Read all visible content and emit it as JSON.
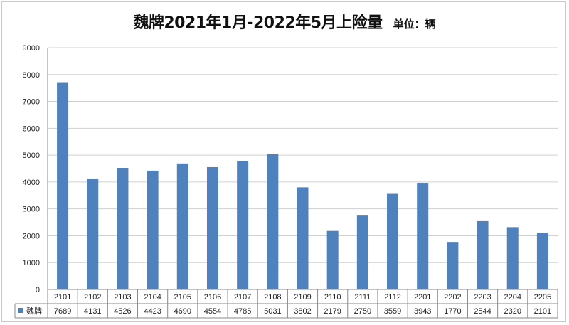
{
  "chart_data": {
    "type": "bar",
    "title": "魏牌2021年1月-2022年5月上险量",
    "unit_label": "单位：辆",
    "categories": [
      "2101",
      "2102",
      "2103",
      "2104",
      "2105",
      "2106",
      "2107",
      "2108",
      "2109",
      "2110",
      "2111",
      "2112",
      "2201",
      "2202",
      "2203",
      "2204",
      "2205"
    ],
    "series": [
      {
        "name": "魏牌",
        "values": [
          7689,
          4131,
          4526,
          4423,
          4690,
          4554,
          4785,
          5031,
          3802,
          2179,
          2750,
          3559,
          3943,
          1770,
          2544,
          2320,
          2101
        ]
      }
    ],
    "ylim": [
      0,
      9000
    ],
    "yticks": [
      "0",
      "1000",
      "2000",
      "3000",
      "4000",
      "5000",
      "6000",
      "7000",
      "8000",
      "9000"
    ],
    "grid": true,
    "legend": "data-table",
    "colors": {
      "bar": "#4f81bd",
      "grid": "#d0d0d0",
      "axis": "#888888"
    }
  }
}
